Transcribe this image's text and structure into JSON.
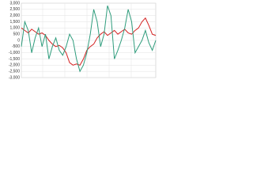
{
  "chart_data": {
    "type": "line",
    "ylim": [
      -3000,
      3000
    ],
    "yticks": [
      {
        "value": -3000,
        "label": "-3,000"
      },
      {
        "value": -2500,
        "label": "-2,500"
      },
      {
        "value": -2000,
        "label": "-2,000"
      },
      {
        "value": -1500,
        "label": "-1,500"
      },
      {
        "value": -1000,
        "label": "-1,000"
      },
      -500,
      0,
      500,
      {
        "value": 1000,
        "label": "1,000"
      },
      {
        "value": 1500,
        "label": "1,500"
      },
      {
        "value": 2000,
        "label": "2,000"
      },
      {
        "value": 2500,
        "label": "2,500"
      },
      {
        "value": 3000,
        "label": "3,000"
      }
    ],
    "grid": true,
    "series": [
      {
        "color": "#d42020",
        "values": [
          1000,
          800,
          600,
          900,
          700,
          500,
          600,
          400,
          0,
          -300,
          -500,
          -400,
          -600,
          -1000,
          -1800,
          -2000,
          -1900,
          -2000,
          -1500,
          -800,
          -500,
          -300,
          200,
          500,
          700,
          400,
          600,
          800,
          500,
          700,
          900,
          600,
          500,
          800,
          1000,
          1500,
          1800,
          1200,
          500,
          400
        ]
      },
      {
        "color": "#2e9c7c",
        "values": [
          -500,
          1500,
          800,
          -1000,
          200,
          1000,
          -500,
          500,
          -1500,
          -500,
          200,
          -800,
          -1200,
          -500,
          500,
          0,
          -1500,
          -2500,
          -2000,
          -1000,
          500,
          2500,
          1500,
          -500,
          500,
          2800,
          2000,
          -1500,
          -800,
          0,
          1000,
          2500,
          1500,
          -1000,
          -500,
          0,
          800,
          -200,
          -800,
          0
        ]
      }
    ]
  }
}
